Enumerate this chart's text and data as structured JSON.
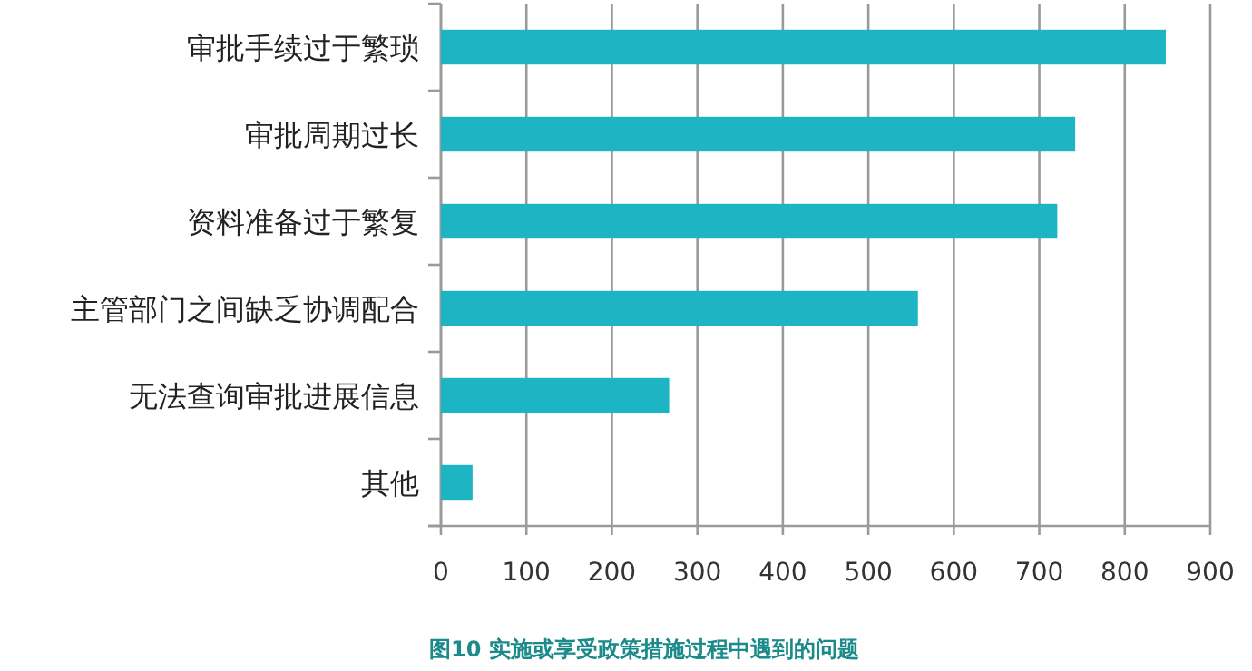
{
  "chart_data": {
    "type": "bar",
    "orientation": "horizontal",
    "categories": [
      "审批手续过于繁琐",
      "审批周期过长",
      "资料准备过于繁复",
      "主管部门之间缺乏协调配合",
      "无法查询审批进展信息",
      "其他"
    ],
    "values": [
      848,
      742,
      721,
      558,
      267,
      37
    ],
    "color": "#1db4c4",
    "xlim": [
      0,
      900
    ],
    "xticks": [
      0,
      100,
      200,
      300,
      400,
      500,
      600,
      700,
      800,
      900
    ],
    "grid": "x",
    "annotations": [
      "图10  实施或享受政策措施过程中遇到的问题"
    ]
  }
}
